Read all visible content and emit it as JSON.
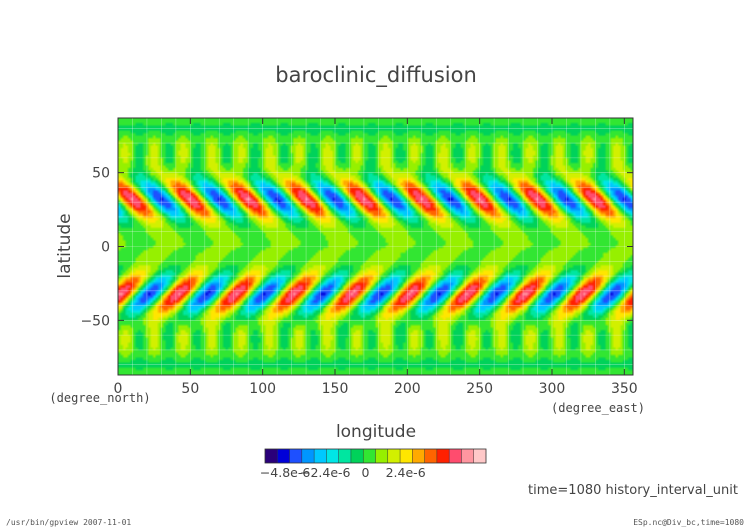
{
  "chart_data": {
    "type": "heatmap",
    "title": "baroclinic_diffusion",
    "xlabel": "longitude",
    "ylabel": "latitude",
    "x_unit": "(degree_east)",
    "y_unit": "(degree_north)",
    "xlim": [
      0,
      356
    ],
    "ylim": [
      -87,
      87
    ],
    "x_ticks": [
      0,
      50,
      100,
      150,
      200,
      250,
      300,
      350
    ],
    "y_ticks": [
      50,
      0,
      -50
    ],
    "y_tick_labels": [
      "50",
      "0",
      "−50"
    ],
    "grid": true,
    "pattern": {
      "band_centers_lat": [
        32,
        -32
      ],
      "eastward_wavenumber": 9,
      "background_value": 6e-07,
      "amplitude": 5.2e-06
    },
    "colorbar": {
      "colors": [
        "#2a007a",
        "#0000d8",
        "#1e50ff",
        "#0096ff",
        "#00c8ff",
        "#00e6e6",
        "#00e6a0",
        "#00d25a",
        "#32e632",
        "#96f000",
        "#d2f000",
        "#ffe600",
        "#ffaa00",
        "#ff6400",
        "#ff2000",
        "#ff4c6e",
        "#ff96a0",
        "#ffc8c8"
      ],
      "tick_labels": [
        "−4.8e-6",
        "−2.4e-6",
        "0",
        "2.4e-6"
      ],
      "min": -6e-06,
      "max": 7.2e-06
    }
  },
  "annotations": {
    "time": "time=1080 history_interval_unit",
    "footer_left": "/usr/bin/gpview  2007-11-01",
    "footer_right": "ESp.nc@Div_bc,time=1080"
  }
}
